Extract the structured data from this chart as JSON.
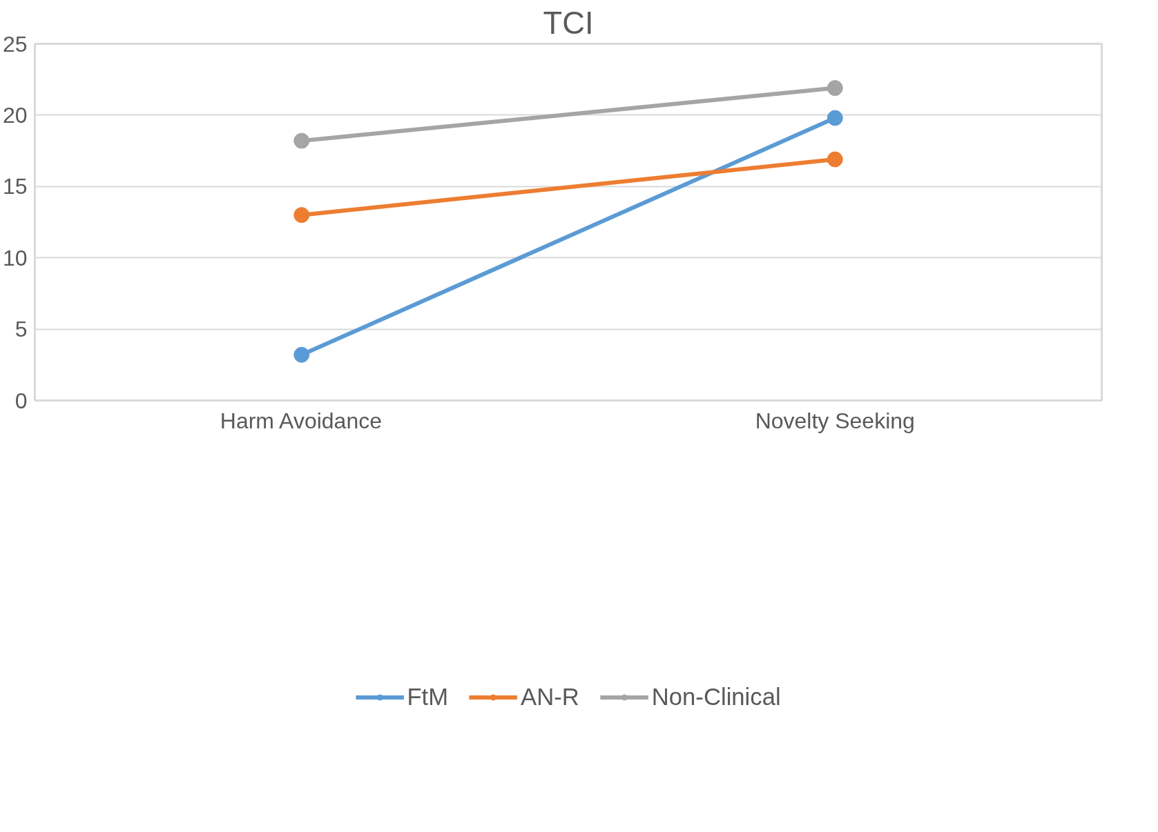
{
  "chart_data": {
    "type": "line",
    "title": "TCI",
    "categories": [
      "Harm Avoidance",
      "Novelty Seeking"
    ],
    "series": [
      {
        "name": "FtM",
        "color": "#5b9bd5",
        "values": [
          3.2,
          19.8
        ]
      },
      {
        "name": "AN-R",
        "color": "#ed7d31",
        "values": [
          13.0,
          16.9
        ]
      },
      {
        "name": "Non-Clinical",
        "color": "#a5a5a5",
        "values": [
          18.2,
          21.9
        ]
      }
    ],
    "ylim": [
      0,
      25
    ],
    "yticks": [
      0,
      5,
      10,
      15,
      20,
      25
    ],
    "grid": "y",
    "legend": "bottom",
    "marker": "circle",
    "line_style": "solid"
  }
}
